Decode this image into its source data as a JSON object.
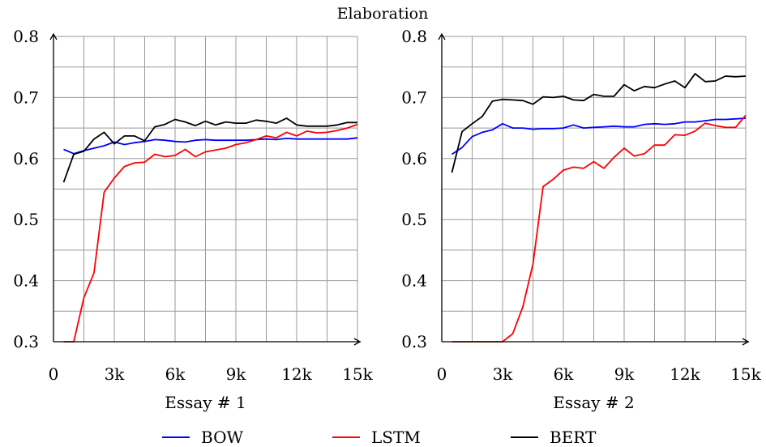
{
  "title": "Elaboration",
  "chart_data": [
    {
      "type": "line",
      "xlabel": "Essay # 1",
      "ylabel": "",
      "xlim": [
        0,
        15000
      ],
      "ylim": [
        0.3,
        0.8
      ],
      "xticks": [
        0,
        3000,
        6000,
        9000,
        12000,
        15000
      ],
      "xtick_labels": [
        "0",
        "3k",
        "6k",
        "9k",
        "12k",
        "15k"
      ],
      "yticks": [
        0.3,
        0.4,
        0.5,
        0.6,
        0.7,
        0.8
      ],
      "ytick_labels": [
        "0.3",
        "0.4",
        "0.5",
        "0.6",
        "0.7",
        "0.8"
      ],
      "grid": true,
      "series": [
        {
          "name": "BOW",
          "color": "#0000ff",
          "x": [
            500,
            1000,
            1500,
            2000,
            2500,
            3000,
            3500,
            4000,
            4500,
            5000,
            5500,
            6000,
            6500,
            7000,
            7500,
            8000,
            8500,
            9000,
            9500,
            10000,
            10500,
            11000,
            11500,
            12000,
            12500,
            13000,
            13500,
            14000,
            14500,
            15000
          ],
          "y": [
            0.615,
            0.608,
            0.613,
            0.617,
            0.621,
            0.627,
            0.623,
            0.626,
            0.628,
            0.631,
            0.63,
            0.628,
            0.627,
            0.63,
            0.631,
            0.63,
            0.63,
            0.63,
            0.63,
            0.631,
            0.632,
            0.631,
            0.633,
            0.632,
            0.632,
            0.632,
            0.632,
            0.632,
            0.632,
            0.634
          ]
        },
        {
          "name": "LSTM",
          "color": "#ff0000",
          "x": [
            500,
            1000,
            1500,
            2000,
            2500,
            3000,
            3500,
            4000,
            4500,
            5000,
            5500,
            6000,
            6500,
            7000,
            7500,
            8000,
            8500,
            9000,
            9500,
            10000,
            10500,
            11000,
            11500,
            12000,
            12500,
            13000,
            13500,
            14000,
            14500,
            15000
          ],
          "y": [
            0.3,
            0.3,
            0.372,
            0.413,
            0.545,
            0.568,
            0.587,
            0.593,
            0.594,
            0.607,
            0.603,
            0.605,
            0.615,
            0.603,
            0.611,
            0.614,
            0.617,
            0.623,
            0.626,
            0.631,
            0.637,
            0.634,
            0.643,
            0.637,
            0.645,
            0.642,
            0.643,
            0.646,
            0.65,
            0.656
          ]
        },
        {
          "name": "BERT",
          "color": "#000000",
          "x": [
            500,
            1000,
            1500,
            2000,
            2500,
            3000,
            3500,
            4000,
            4500,
            5000,
            5500,
            6000,
            6500,
            7000,
            7500,
            8000,
            8500,
            9000,
            9500,
            10000,
            10500,
            11000,
            11500,
            12000,
            12500,
            13000,
            13500,
            14000,
            14500,
            15000
          ],
          "y": [
            0.561,
            0.607,
            0.612,
            0.632,
            0.643,
            0.624,
            0.637,
            0.637,
            0.629,
            0.652,
            0.656,
            0.664,
            0.66,
            0.654,
            0.661,
            0.655,
            0.66,
            0.658,
            0.658,
            0.663,
            0.661,
            0.658,
            0.666,
            0.655,
            0.653,
            0.653,
            0.653,
            0.655,
            0.659,
            0.659
          ]
        }
      ]
    },
    {
      "type": "line",
      "xlabel": "Essay # 2",
      "ylabel": "",
      "xlim": [
        0,
        15000
      ],
      "ylim": [
        0.3,
        0.8
      ],
      "xticks": [
        0,
        3000,
        6000,
        9000,
        12000,
        15000
      ],
      "xtick_labels": [
        "0",
        "3k",
        "6k",
        "9k",
        "12k",
        "15k"
      ],
      "yticks": [
        0.3,
        0.4,
        0.5,
        0.6,
        0.7,
        0.8
      ],
      "ytick_labels": [
        "0.3",
        "0.4",
        "0.5",
        "0.6",
        "0.7",
        "0.8"
      ],
      "grid": true,
      "series": [
        {
          "name": "BOW",
          "color": "#0000ff",
          "x": [
            500,
            1000,
            1500,
            2000,
            2500,
            3000,
            3500,
            4000,
            4500,
            5000,
            5500,
            6000,
            6500,
            7000,
            7500,
            8000,
            8500,
            9000,
            9500,
            10000,
            10500,
            11000,
            11500,
            12000,
            12500,
            13000,
            13500,
            14000,
            14500,
            15000
          ],
          "y": [
            0.607,
            0.618,
            0.636,
            0.643,
            0.647,
            0.657,
            0.65,
            0.65,
            0.648,
            0.649,
            0.649,
            0.65,
            0.655,
            0.65,
            0.651,
            0.652,
            0.653,
            0.652,
            0.652,
            0.656,
            0.657,
            0.656,
            0.657,
            0.66,
            0.66,
            0.662,
            0.664,
            0.664,
            0.665,
            0.666
          ]
        },
        {
          "name": "LSTM",
          "color": "#ff0000",
          "x": [
            500,
            1000,
            1500,
            2000,
            2500,
            3000,
            3500,
            4000,
            4500,
            5000,
            5500,
            6000,
            6500,
            7000,
            7500,
            8000,
            8500,
            9000,
            9500,
            10000,
            10500,
            11000,
            11500,
            12000,
            12500,
            13000,
            13500,
            14000,
            14500,
            15000
          ],
          "y": [
            0.3,
            0.3,
            0.3,
            0.3,
            0.3,
            0.3,
            0.313,
            0.357,
            0.427,
            0.554,
            0.566,
            0.581,
            0.586,
            0.584,
            0.595,
            0.584,
            0.602,
            0.617,
            0.604,
            0.608,
            0.622,
            0.622,
            0.639,
            0.638,
            0.645,
            0.658,
            0.654,
            0.651,
            0.651,
            0.671
          ]
        },
        {
          "name": "BERT",
          "color": "#000000",
          "x": [
            500,
            1000,
            1500,
            2000,
            2500,
            3000,
            3500,
            4000,
            4500,
            5000,
            5500,
            6000,
            6500,
            7000,
            7500,
            8000,
            8500,
            9000,
            9500,
            10000,
            10500,
            11000,
            11500,
            12000,
            12500,
            13000,
            13500,
            14000,
            14500,
            15000
          ],
          "y": [
            0.577,
            0.644,
            0.657,
            0.669,
            0.694,
            0.697,
            0.696,
            0.695,
            0.689,
            0.701,
            0.7,
            0.702,
            0.696,
            0.695,
            0.705,
            0.702,
            0.702,
            0.721,
            0.711,
            0.718,
            0.716,
            0.722,
            0.727,
            0.716,
            0.739,
            0.726,
            0.727,
            0.735,
            0.734,
            0.735
          ]
        }
      ]
    }
  ],
  "legend": {
    "placement": "bottom-center",
    "entries": [
      {
        "name": "BOW",
        "color": "#0000ff"
      },
      {
        "name": "LSTM",
        "color": "#ff0000"
      },
      {
        "name": "BERT",
        "color": "#000000"
      }
    ]
  }
}
